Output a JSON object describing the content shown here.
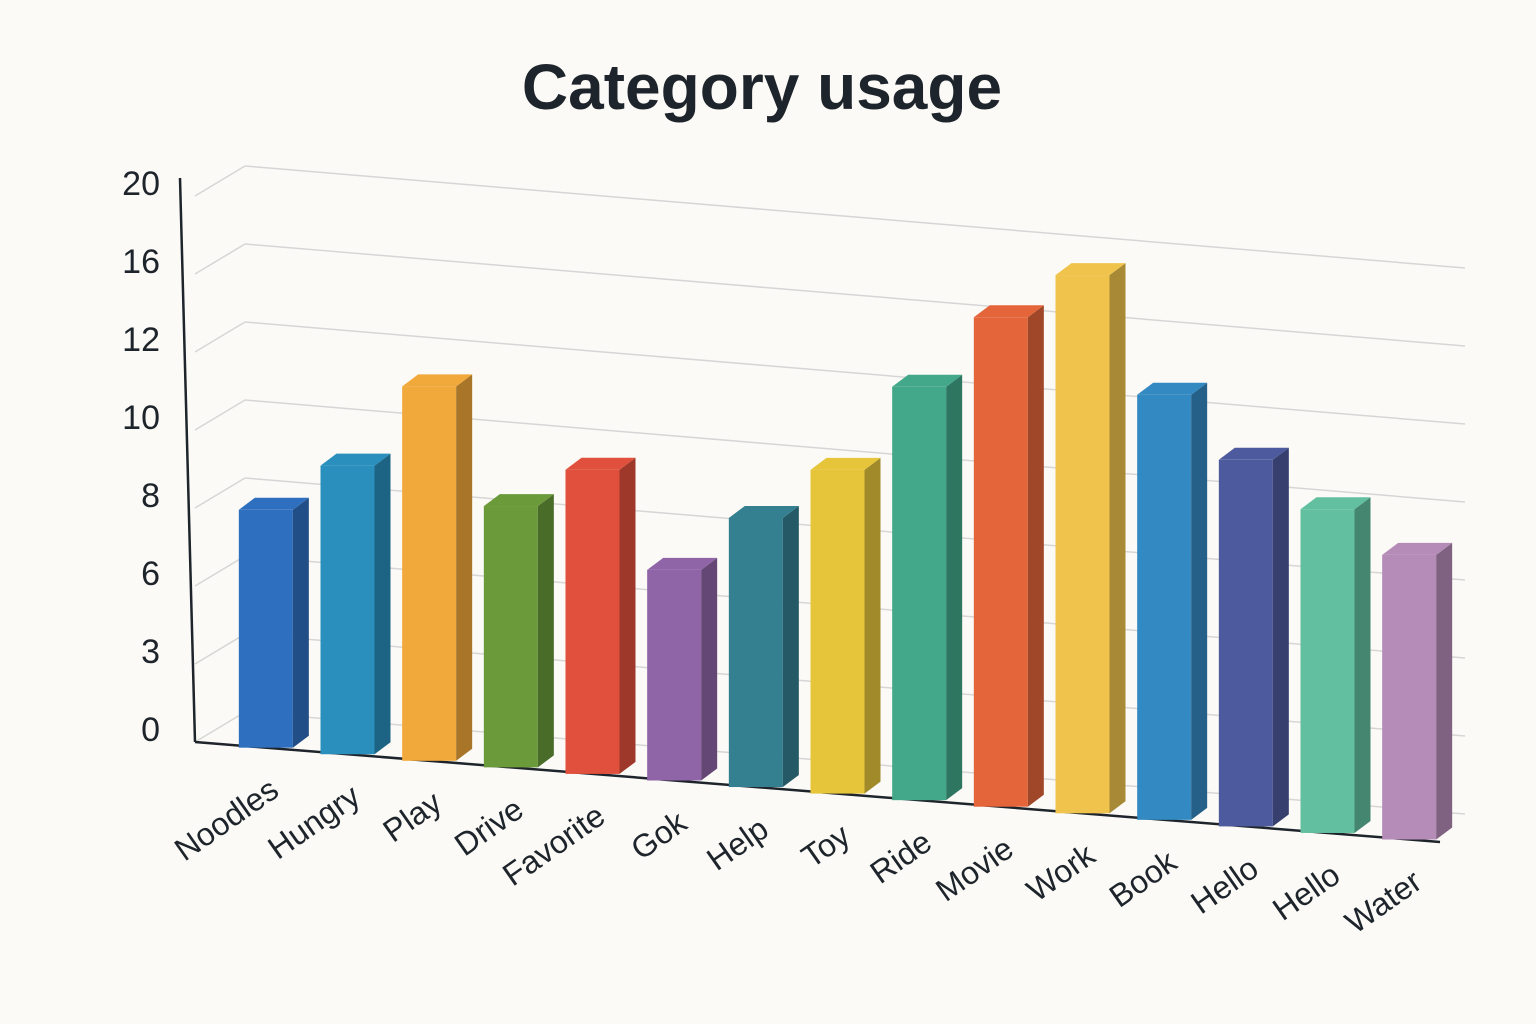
{
  "chart_data": {
    "type": "bar3d",
    "title": "Category usage",
    "categories": [
      "Noodles",
      "Hungry",
      "Play",
      "Drive",
      "Favorite",
      "Gok",
      "Help",
      "Toy",
      "Ride",
      "Movie",
      "Work",
      "Book",
      "Hello",
      "Hello",
      "Water"
    ],
    "values": [
      8.1,
      9.4,
      11.6,
      8.7,
      9.8,
      7.4,
      8.9,
      10.3,
      13.2,
      17.1,
      19.6,
      13.8,
      11.4,
      10.3,
      9.3
    ],
    "colors": [
      "#2f6fbf",
      "#2a8fbd",
      "#f2a93b",
      "#6a9a3a",
      "#e0503c",
      "#9065a8",
      "#347f90",
      "#e6c53a",
      "#43a889",
      "#e4653a",
      "#f0c44c",
      "#3389c2",
      "#4e5a9e",
      "#62c0a0",
      "#b58cb8"
    ],
    "ylim": [
      0,
      20
    ],
    "yticks": [
      0,
      3,
      6,
      8,
      10,
      12,
      16,
      20
    ],
    "grid": true
  }
}
